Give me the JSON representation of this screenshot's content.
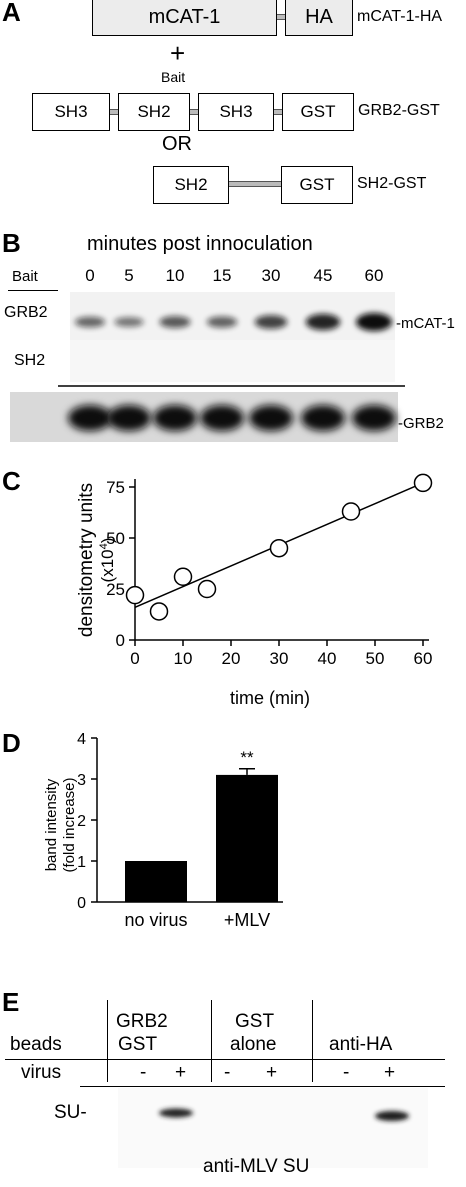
{
  "panelA": {
    "letter": "A",
    "construct1": {
      "domains": [
        "mCAT-1",
        "HA"
      ],
      "name": "mCAT-1-HA"
    },
    "plus": "+",
    "bait": "Bait",
    "construct2": {
      "domains": [
        "SH3",
        "SH2",
        "SH3",
        "GST"
      ],
      "name": "GRB2-GST"
    },
    "or": "OR",
    "construct3": {
      "domains": [
        "SH2",
        "GST"
      ],
      "name": "SH2-GST"
    }
  },
  "panelB": {
    "letter": "B",
    "title": "minutes post innoculation",
    "bait_header": "Bait",
    "timepoints": [
      "0",
      "5",
      "10",
      "15",
      "30",
      "45",
      "60"
    ],
    "rows": [
      "GRB2",
      "SH2"
    ],
    "right_labels": {
      "mcat": "-mCAT-1",
      "grb2": "-GRB2"
    }
  },
  "panelC": {
    "letter": "C",
    "chart_data": {
      "type": "scatter",
      "x": [
        0,
        5,
        10,
        15,
        30,
        45,
        60
      ],
      "y": [
        22,
        14,
        31,
        25,
        45,
        63,
        77
      ],
      "fit_line": {
        "x": [
          0,
          60
        ],
        "y": [
          16,
          77
        ]
      },
      "xlabel": "time (min)",
      "ylabel": "densitometry units",
      "ylabel2": "(x10",
      "ylabel2_sup": "4",
      "ylabel2_end": ")",
      "xlim": [
        0,
        60
      ],
      "ylim": [
        0,
        75
      ],
      "xticks": [
        "0",
        "10",
        "20",
        "30",
        "40",
        "50",
        "60"
      ],
      "yticks": [
        "0",
        "25",
        "50",
        "75"
      ]
    }
  },
  "panelD": {
    "letter": "D",
    "chart_data": {
      "type": "bar",
      "categories": [
        "no virus",
        "+MLV"
      ],
      "values": [
        1.0,
        3.1
      ],
      "error": [
        0,
        0.15
      ],
      "significance": "**",
      "ylabel": "band intensity",
      "ylabel2": "(fold increase)",
      "ylim": [
        0,
        4
      ],
      "yticks": [
        "0",
        "1",
        "2",
        "3",
        "4"
      ],
      "bar_color": "#000000"
    }
  },
  "panelE": {
    "letter": "E",
    "beads_label": "beads",
    "virus_label": "virus",
    "groups": [
      {
        "line1": "GRB2",
        "line2": "GST"
      },
      {
        "line1": "GST",
        "line2": "alone"
      },
      {
        "line1": "anti-HA",
        "line2": ""
      }
    ],
    "signs": [
      "-",
      "+",
      "-",
      "+",
      "-",
      "+"
    ],
    "band_label": "SU-",
    "blot_label": "anti-MLV SU"
  }
}
